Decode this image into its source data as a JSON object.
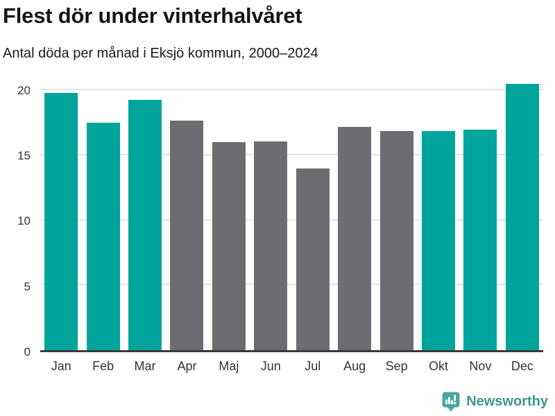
{
  "chart_data": {
    "type": "bar",
    "title": "Flest dör under vinterhalvåret",
    "subtitle": "Antal döda per månad i Eksjö kommun, 2000–2024",
    "categories": [
      "Jan",
      "Feb",
      "Mar",
      "Apr",
      "Maj",
      "Jun",
      "Jul",
      "Aug",
      "Sep",
      "Okt",
      "Nov",
      "Dec"
    ],
    "values": [
      19.8,
      17.5,
      19.3,
      17.7,
      16.0,
      16.1,
      14.0,
      17.2,
      16.9,
      16.9,
      17.0,
      20.5
    ],
    "bar_colors": [
      "#00a49b",
      "#00a49b",
      "#00a49b",
      "#6d6d71",
      "#6d6d71",
      "#6d6d71",
      "#6d6d71",
      "#6d6d71",
      "#6d6d71",
      "#00a49b",
      "#00a49b",
      "#00a49b"
    ],
    "highlight_color": "#00a49b",
    "base_color": "#6d6d71",
    "xlabel": "",
    "ylabel": "",
    "yticks": [
      0,
      5,
      10,
      15,
      20
    ],
    "ylim": [
      0,
      21.2
    ],
    "grid": "horizontal",
    "gridline_color": "#e3e3e3",
    "axis_line_color": "#3a3a3a",
    "legend": "none"
  },
  "footer": {
    "brand": "Newsworthy",
    "brand_color": "#3f948f",
    "logo_color": "#4ca5a0",
    "logo_icon": "bar-chart-speech-bubble"
  }
}
